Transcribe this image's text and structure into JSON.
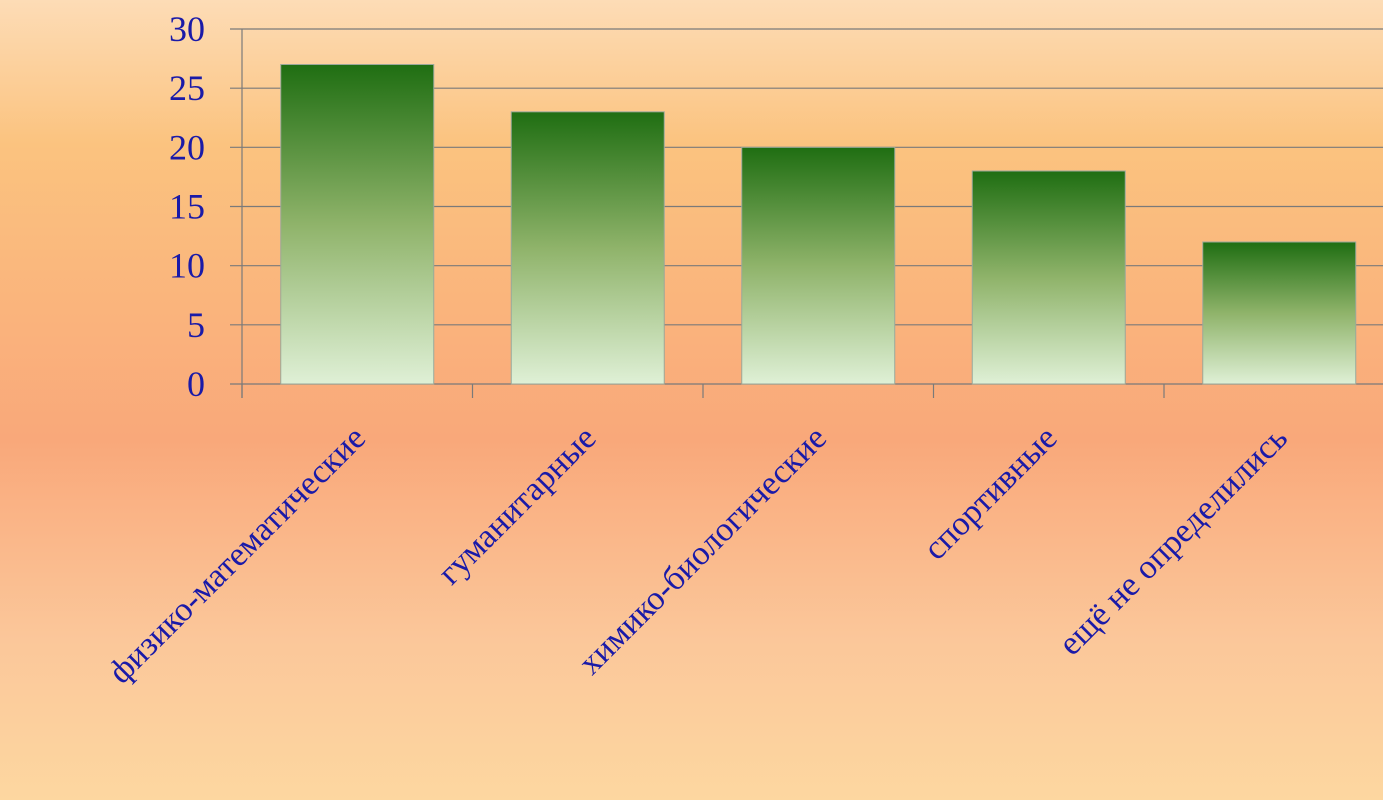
{
  "chart_data": {
    "type": "bar",
    "categories": [
      "физико-математические",
      "гуманитарные",
      "химико-биологические",
      "спортивные",
      "ещё не определились"
    ],
    "values": [
      27,
      23,
      20,
      18,
      12
    ],
    "ylim": [
      0,
      30
    ],
    "yticks": [
      0,
      5,
      10,
      15,
      20,
      25,
      30
    ],
    "grid": true,
    "colors": {
      "bar_top": "#1f6e12",
      "bar_mid": "#8fb36a",
      "bar_bottom": "#dff0d6",
      "label_text": "#1a1aa8"
    }
  }
}
